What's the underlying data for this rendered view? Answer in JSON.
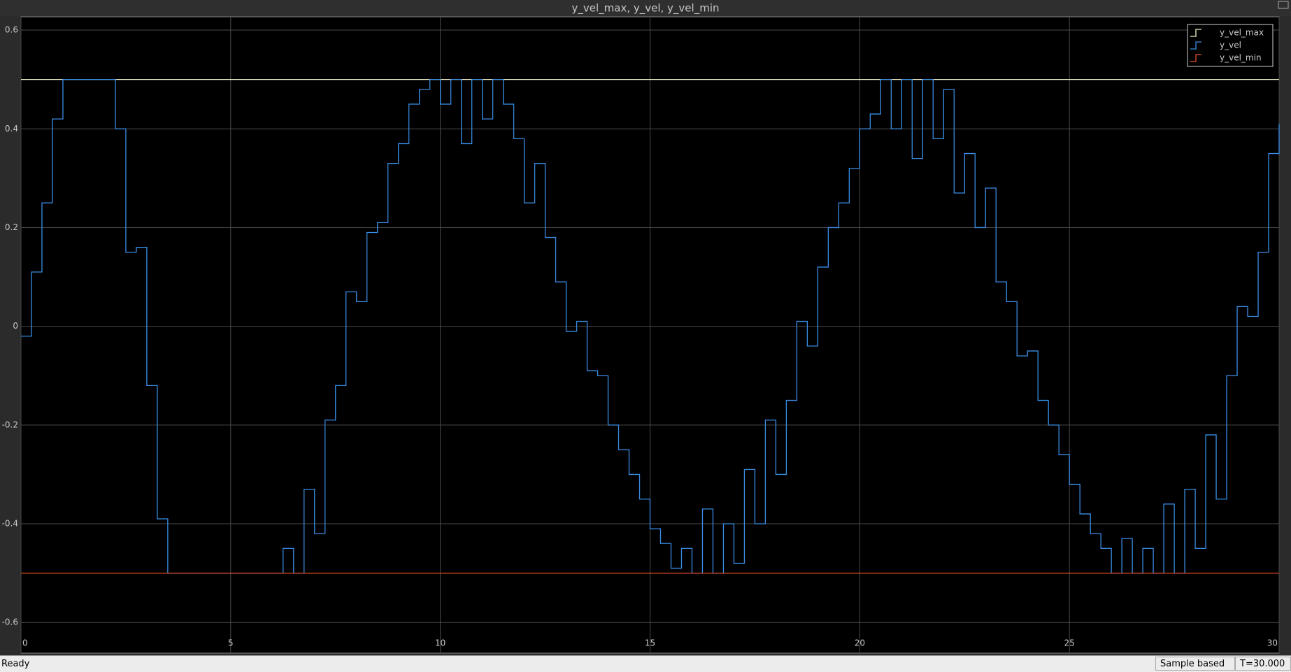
{
  "window_title": "y_vel_max, y_vel, y_vel_min",
  "chart_data": {
    "type": "stairs",
    "xlim": [
      0,
      30
    ],
    "xticks": [
      0,
      5,
      10,
      15,
      20,
      25,
      30
    ],
    "ylim": [
      -0.662,
      0.627
    ],
    "yticks": [
      -0.6,
      -0.4,
      -0.2,
      0,
      0.2,
      0.4,
      0.6
    ],
    "grid": true,
    "legend": "top-right",
    "series": [
      {
        "name": "y_vel_max",
        "color": "#f2f2c8",
        "x": [
          0,
          30
        ],
        "values": [
          0.5,
          0.5
        ]
      },
      {
        "name": "y_vel",
        "color": "#3a8ee6",
        "x": [
          0,
          0.25,
          0.5,
          0.75,
          1,
          1.25,
          1.5,
          1.75,
          2,
          2.25,
          2.5,
          2.75,
          3,
          3.25,
          3.5,
          3.75,
          4,
          4.25,
          4.5,
          4.75,
          5,
          5.25,
          5.5,
          5.75,
          6,
          6.25,
          6.5,
          6.75,
          7,
          7.25,
          7.5,
          7.75,
          8,
          8.25,
          8.5,
          8.75,
          9,
          9.25,
          9.5,
          9.75,
          10,
          10.25,
          10.5,
          10.75,
          11,
          11.25,
          11.5,
          11.75,
          12,
          12.25,
          12.5,
          12.75,
          13,
          13.25,
          13.5,
          13.75,
          14,
          14.25,
          14.5,
          14.75,
          15,
          15.25,
          15.5,
          15.75,
          16,
          16.25,
          16.5,
          16.75,
          17,
          17.25,
          17.5,
          17.75,
          18,
          18.25,
          18.5,
          18.75,
          19,
          19.25,
          19.5,
          19.75,
          20,
          20.25,
          20.5,
          20.75,
          21,
          21.25,
          21.5,
          21.75,
          22,
          22.25,
          22.5,
          22.75,
          23,
          23.25,
          23.5,
          23.75,
          24,
          24.25,
          24.5,
          24.75,
          25,
          25.25,
          25.5,
          25.75,
          26,
          26.25,
          26.5,
          26.75,
          27,
          27.25,
          27.5,
          27.75,
          28,
          28.25,
          28.5,
          28.75,
          29,
          29.25,
          29.5,
          29.75,
          30
        ],
        "values": [
          -0.02,
          0.11,
          0.25,
          0.42,
          0.5,
          0.5,
          0.5,
          0.5,
          0.5,
          0.4,
          0.15,
          0.16,
          -0.12,
          -0.39,
          -0.5,
          -0.5,
          -0.5,
          -0.5,
          -0.5,
          -0.5,
          -0.5,
          -0.5,
          -0.5,
          -0.5,
          -0.5,
          -0.45,
          -0.5,
          -0.33,
          -0.42,
          -0.19,
          -0.12,
          0.07,
          0.05,
          0.19,
          0.21,
          0.33,
          0.37,
          0.45,
          0.48,
          0.5,
          0.45,
          0.5,
          0.37,
          0.5,
          0.42,
          0.5,
          0.45,
          0.38,
          0.25,
          0.33,
          0.18,
          0.09,
          -0.01,
          0.01,
          -0.09,
          -0.1,
          -0.2,
          -0.25,
          -0.3,
          -0.35,
          -0.41,
          -0.44,
          -0.49,
          -0.45,
          -0.5,
          -0.37,
          -0.5,
          -0.4,
          -0.48,
          -0.29,
          -0.4,
          -0.19,
          -0.3,
          -0.15,
          0.01,
          -0.04,
          0.12,
          0.2,
          0.25,
          0.32,
          0.4,
          0.43,
          0.5,
          0.4,
          0.5,
          0.34,
          0.5,
          0.38,
          0.48,
          0.27,
          0.35,
          0.2,
          0.28,
          0.09,
          0.05,
          -0.06,
          -0.05,
          -0.15,
          -0.2,
          -0.26,
          -0.32,
          -0.38,
          -0.42,
          -0.45,
          -0.5,
          -0.43,
          -0.5,
          -0.45,
          -0.5,
          -0.36,
          -0.5,
          -0.33,
          -0.45,
          -0.22,
          -0.35,
          -0.1,
          0.04,
          0.02,
          0.15,
          0.35,
          0.41
        ]
      },
      {
        "name": "y_vel_min",
        "color": "#e8502a",
        "x": [
          0,
          30
        ],
        "values": [
          -0.5,
          -0.5
        ]
      }
    ]
  },
  "status_bar": {
    "status": "Ready",
    "mode": "Sample based",
    "time": "T=30.000"
  }
}
